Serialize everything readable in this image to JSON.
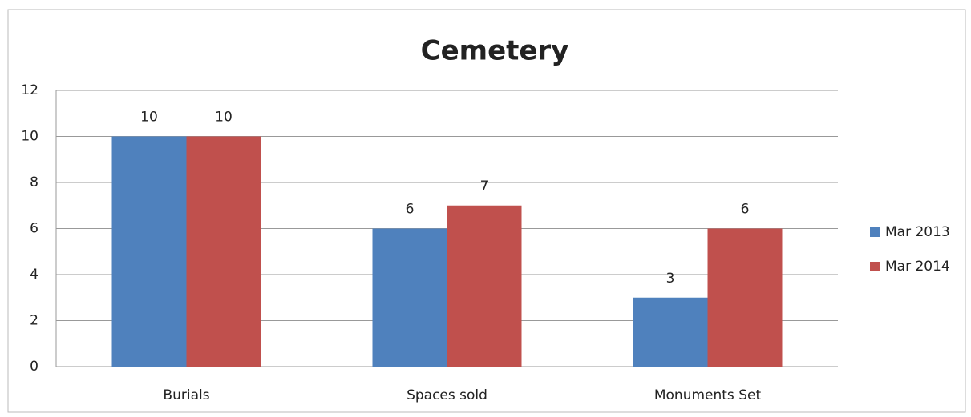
{
  "chart_data": {
    "type": "bar",
    "title": "Cemetery",
    "categories": [
      "Burials",
      "Spaces sold",
      "Monuments Set"
    ],
    "series": [
      {
        "name": "Mar 2013",
        "color": "#4f81bd",
        "values": [
          10,
          6,
          3
        ]
      },
      {
        "name": "Mar 2014",
        "color": "#c0504d",
        "values": [
          10,
          7,
          6
        ]
      }
    ],
    "ylim": [
      0,
      12
    ],
    "yticks": [
      0,
      2,
      4,
      6,
      8,
      10,
      12
    ],
    "grid": true,
    "legend": "right"
  }
}
